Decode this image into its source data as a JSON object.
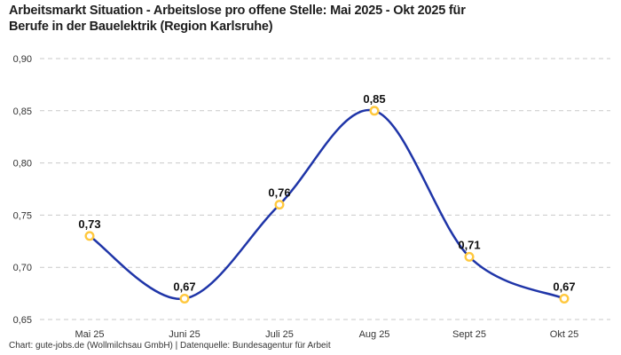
{
  "header": {
    "title_line1": "Arbeitsmarkt Situation - Arbeitslose pro offene Stelle: Mai 2025 - Okt 2025 für",
    "title_line2": "Berufe in der Bauelektrik (Region Karlsruhe)"
  },
  "footer": {
    "credit": "Chart: gute-jobs.de (Wollmilchsau GmbH) | Datenquelle: Bundesagentur für Arbeit"
  },
  "chart_data": {
    "type": "line",
    "title": "Arbeitsmarkt Situation - Arbeitslose pro offene Stelle: Mai 2025 - Okt 2025 für Berufe in der Bauelektrik (Region Karlsruhe)",
    "categories": [
      "Mai 25",
      "Juni 25",
      "Juli 25",
      "Aug 25",
      "Sept 25",
      "Okt 25"
    ],
    "values": [
      0.73,
      0.67,
      0.76,
      0.85,
      0.71,
      0.67
    ],
    "point_labels": [
      "0,73",
      "0,67",
      "0,76",
      "0,85",
      "0,71",
      "0,67"
    ],
    "yticks": [
      0.9,
      0.85,
      0.8,
      0.75,
      0.7,
      0.65
    ],
    "ytick_labels": [
      "0,90",
      "0,85",
      "0,80",
      "0,75",
      "0,70",
      "0,65"
    ],
    "ylim": [
      0.65,
      0.9
    ],
    "xlabel": "",
    "ylabel": "",
    "grid": "horizontal-dashed",
    "legend": "none",
    "curve": "smooth-spline",
    "colors": {
      "line": "#1f35a8",
      "marker_ring": "#ffc83d",
      "marker_fill": "#ffffff",
      "gridline": "#c9c9c9",
      "title_text": "#1d1d1d",
      "tick_text": "#333333",
      "label_text": "#111111"
    }
  }
}
